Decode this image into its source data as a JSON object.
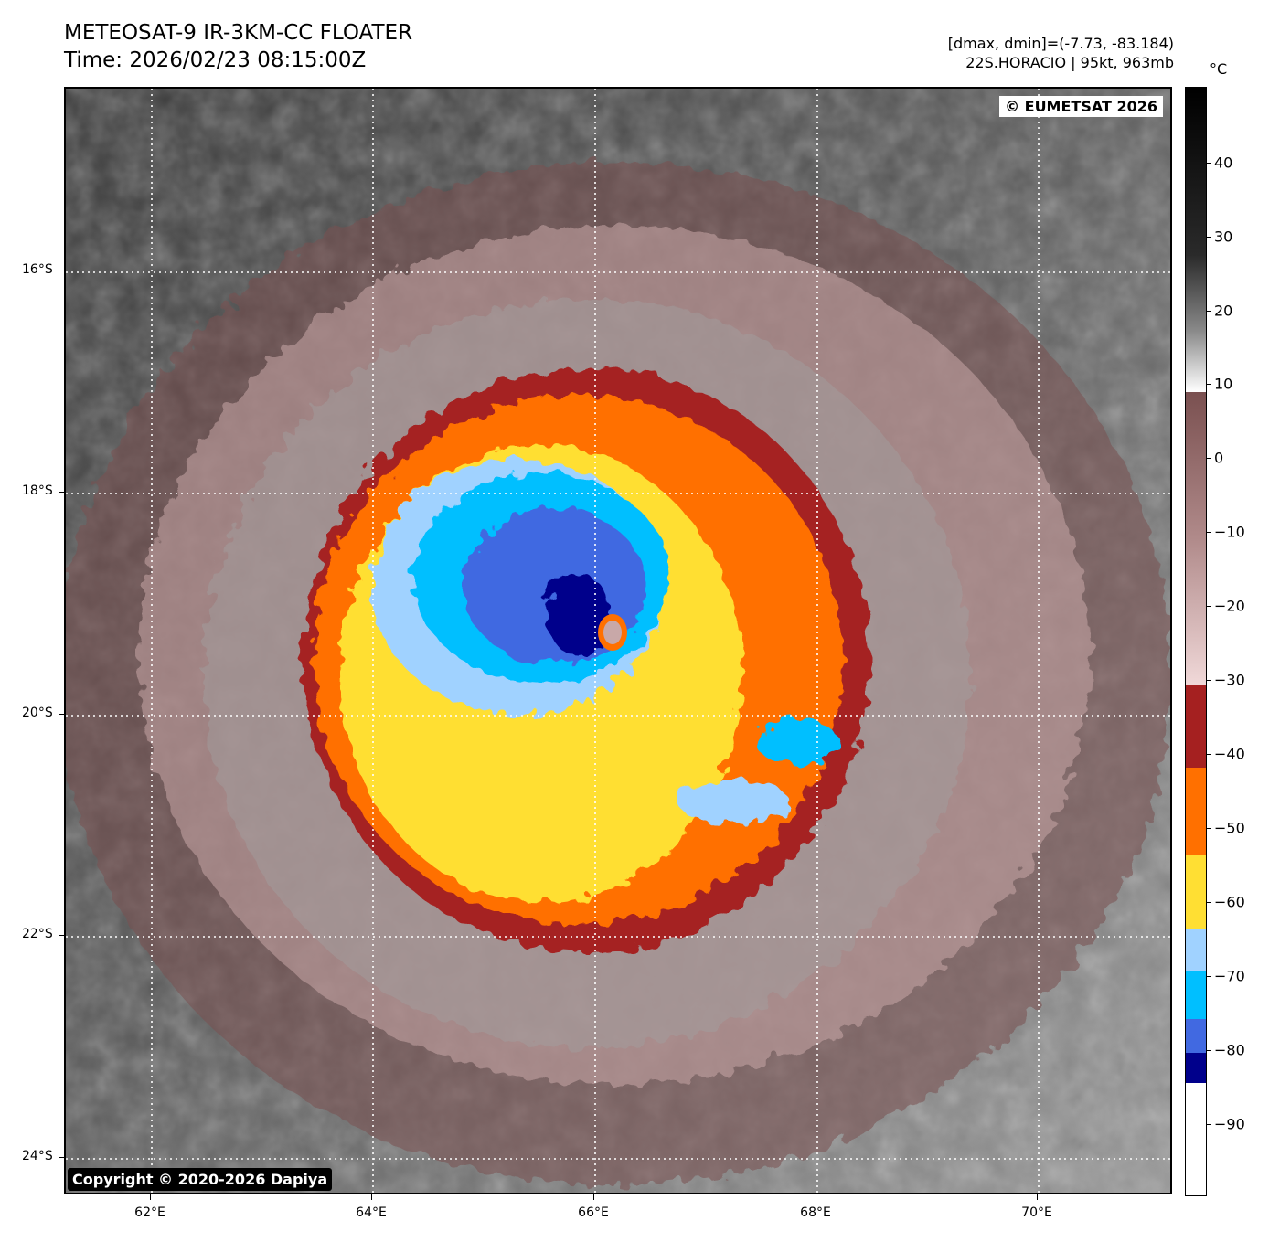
{
  "header": {
    "title_line1": "METEOSAT-9 IR-3KM-CC FLOATER",
    "title_line2": "Time: 2026/02/23 08:15:00Z",
    "info_line1": "[dmax, dmin]=(-7.73, -83.184)",
    "info_line2": "22S.HORACIO | 95kt, 963mb"
  },
  "map": {
    "badge_top_right": "© EUMETSAT 2026",
    "badge_bottom_left": "Copyright © 2020-2026 Dapiya",
    "lat_labels": [
      "16°S",
      "18°S",
      "20°S",
      "22°S",
      "24°S"
    ],
    "lon_labels": [
      "62°E",
      "64°E",
      "66°E",
      "68°E",
      "70°E"
    ],
    "eye_icon": "storm-eye"
  },
  "colorbar": {
    "unit": "°C",
    "labels": [
      "40",
      "30",
      "20",
      "10",
      "0",
      "−10",
      "−20",
      "−30",
      "−40",
      "−50",
      "−60",
      "−70",
      "−80",
      "−90"
    ],
    "color_stops": {
      "very_cold": "#00008b",
      "blue": "#4169e1",
      "deep_sky": "#00bfff",
      "light_blue": "#a0d2ff",
      "yellow": "#ffdf33",
      "orange": "#ff7000",
      "dark_red": "#a52020",
      "mauve": "#7a5050",
      "pink": "#f0d8d8"
    }
  }
}
